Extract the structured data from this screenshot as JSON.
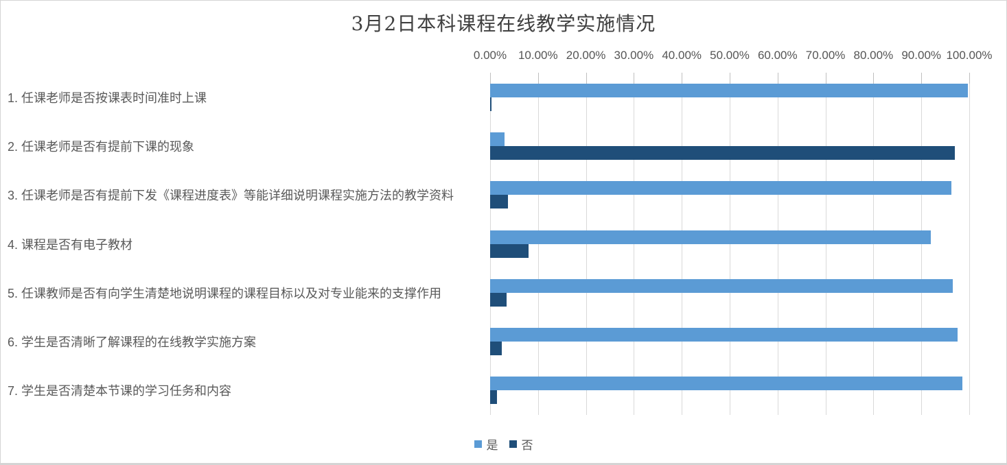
{
  "chart_data": {
    "type": "bar",
    "orientation": "horizontal",
    "title": "3月2日本科课程在线教学实施情况",
    "categories": [
      "1. 任课老师是否按课表时间准时上课",
      "2. 任课老师是否有提前下课的现象",
      "3. 任课老师是否有提前下发《课程进度表》等能详细说明课程实施方法的教学资料",
      "4. 课程是否有电子教材",
      "5. 任课教师是否有向学生清楚地说明课程的课程目标以及对专业能来的支撑作用",
      "6. 学生是否清晰了解课程的在线教学实施方案",
      "7. 学生是否清楚本节课的学习任务和内容"
    ],
    "series": [
      {
        "name": "是",
        "color": "#5B9BD5",
        "values": [
          99.7,
          3.0,
          96.3,
          92.0,
          96.6,
          97.5,
          98.5
        ]
      },
      {
        "name": "否",
        "color": "#1F4E79",
        "values": [
          0.3,
          97.0,
          3.7,
          8.0,
          3.4,
          2.5,
          1.5
        ]
      }
    ],
    "x_axis": {
      "position": "top",
      "min": 0,
      "max": 100,
      "tick_labels": [
        "0.00%",
        "10.00%",
        "20.00%",
        "30.00%",
        "40.00%",
        "50.00%",
        "60.00%",
        "70.00%",
        "80.00%",
        "90.00%",
        "100.00%"
      ]
    },
    "grid": true,
    "legend": {
      "position": "bottom",
      "labels": [
        "是",
        "否"
      ]
    }
  }
}
